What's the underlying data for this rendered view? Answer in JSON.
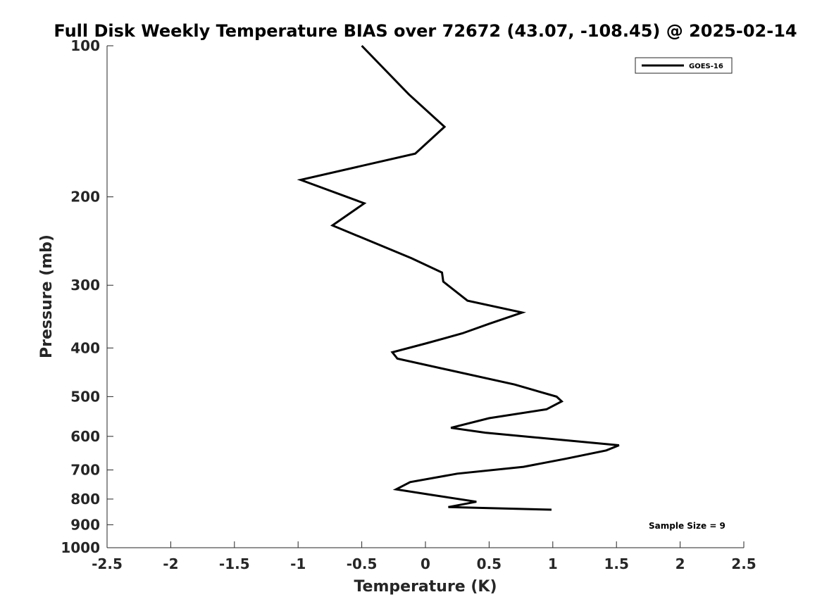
{
  "chart_data": {
    "type": "line",
    "title": "Full Disk Weekly Temperature BIAS over 72672 (43.07, -108.45) @ 2025-02-14",
    "xlabel": "Temperature (K)",
    "ylabel": "Pressure (mb)",
    "xlim": [
      -2.5,
      2.5
    ],
    "ylim": [
      100,
      1000
    ],
    "y_scale": "log",
    "y_reversed": true,
    "grid": false,
    "x_ticks": [
      -2.5,
      -2,
      -1.5,
      -1,
      -0.5,
      0,
      0.5,
      1,
      1.5,
      2,
      2.5
    ],
    "x_tick_labels": [
      "-2.5",
      "-2",
      "-1.5",
      "-1",
      "-0.5",
      "0",
      "0.5",
      "1",
      "1.5",
      "2",
      "2.5"
    ],
    "y_ticks": [
      100,
      200,
      300,
      400,
      500,
      600,
      700,
      800,
      900,
      1000
    ],
    "y_tick_labels": [
      "100",
      "200",
      "300",
      "400",
      "500",
      "600",
      "700",
      "800",
      "900",
      "1000"
    ],
    "legend_position": "top-right",
    "annotation": "Sample Size = 9",
    "series": [
      {
        "name": "GOES-16",
        "color": "#000000",
        "x": [
          -0.5,
          -0.13,
          0.15,
          -0.08,
          -0.98,
          -0.48,
          -0.73,
          -0.11,
          0.13,
          0.14,
          0.33,
          0.76,
          0.5,
          0.29,
          0.0,
          -0.26,
          -0.22,
          0.7,
          1.03,
          1.07,
          0.95,
          0.5,
          0.2,
          0.47,
          1.52,
          1.42,
          1.1,
          0.77,
          0.25,
          -0.12,
          -0.23,
          0.05,
          0.4,
          0.18,
          0.99
        ],
        "y": [
          100,
          125,
          145,
          164,
          185,
          206,
          228,
          265,
          283,
          295,
          322,
          340,
          358,
          374,
          392,
          408,
          420,
          473,
          500,
          511,
          530,
          552,
          577,
          590,
          625,
          640,
          665,
          690,
          712,
          740,
          765,
          785,
          810,
          830,
          840
        ]
      }
    ]
  }
}
